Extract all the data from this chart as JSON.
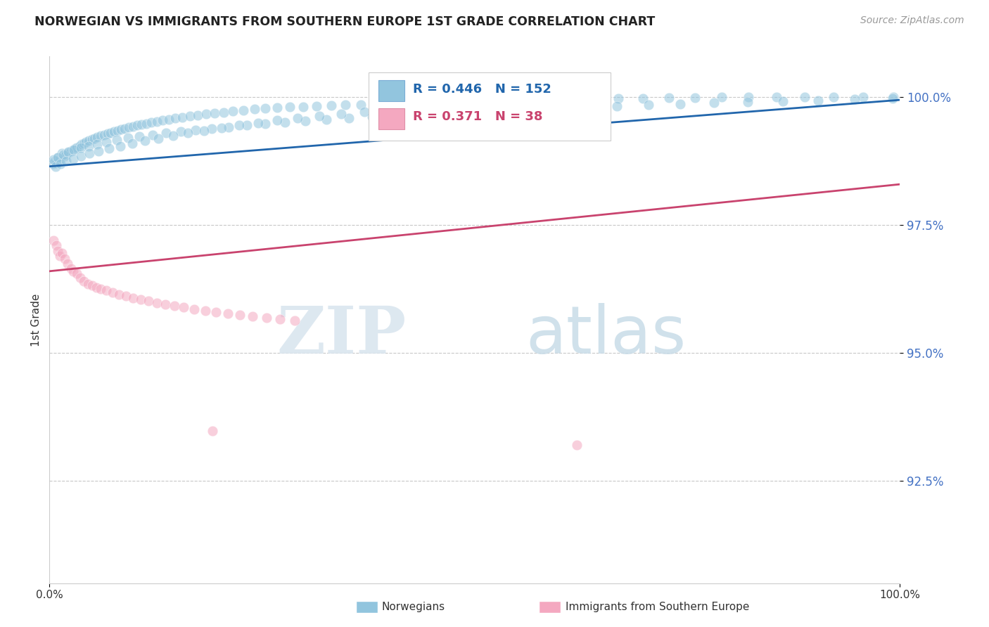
{
  "title": "NORWEGIAN VS IMMIGRANTS FROM SOUTHERN EUROPE 1ST GRADE CORRELATION CHART",
  "source_text": "Source: ZipAtlas.com",
  "ylabel": "1st Grade",
  "xlim": [
    0.0,
    1.0
  ],
  "ylim": [
    0.905,
    1.008
  ],
  "yticks": [
    0.925,
    0.95,
    0.975,
    1.0
  ],
  "ytick_labels": [
    "92.5%",
    "95.0%",
    "97.5%",
    "100.0%"
  ],
  "legend_blue_R": "R = 0.446",
  "legend_blue_N": "N = 152",
  "legend_pink_R": "R = 0.371",
  "legend_pink_N": "N = 38",
  "legend_label_blue": "Norwegians",
  "legend_label_pink": "Immigrants from Southern Europe",
  "blue_color": "#92c5de",
  "pink_color": "#f4a8c0",
  "trendline_blue": "#2166ac",
  "trendline_pink": "#c9436e",
  "watermark_zip": "ZIP",
  "watermark_atlas": "atlas",
  "blue_trend_y_start": 0.9865,
  "blue_trend_y_end": 0.9995,
  "pink_trend_y_start": 0.966,
  "pink_trend_y_end": 0.983,
  "blue_scatter_x": [
    0.004,
    0.006,
    0.008,
    0.01,
    0.012,
    0.015,
    0.018,
    0.02,
    0.022,
    0.025,
    0.028,
    0.03,
    0.032,
    0.035,
    0.038,
    0.04,
    0.043,
    0.046,
    0.05,
    0.053,
    0.056,
    0.06,
    0.064,
    0.068,
    0.072,
    0.076,
    0.08,
    0.084,
    0.088,
    0.093,
    0.098,
    0.103,
    0.108,
    0.114,
    0.12,
    0.126,
    0.133,
    0.14,
    0.148,
    0.156,
    0.165,
    0.174,
    0.184,
    0.194,
    0.205,
    0.216,
    0.228,
    0.241,
    0.254,
    0.268,
    0.283,
    0.298,
    0.314,
    0.331,
    0.348,
    0.366,
    0.385,
    0.404,
    0.424,
    0.445,
    0.467,
    0.489,
    0.512,
    0.536,
    0.561,
    0.587,
    0.614,
    0.641,
    0.669,
    0.698,
    0.728,
    0.759,
    0.79,
    0.822,
    0.855,
    0.888,
    0.922,
    0.957,
    0.992,
    0.005,
    0.01,
    0.016,
    0.022,
    0.029,
    0.037,
    0.046,
    0.056,
    0.067,
    0.079,
    0.092,
    0.106,
    0.121,
    0.137,
    0.154,
    0.172,
    0.191,
    0.211,
    0.232,
    0.254,
    0.277,
    0.301,
    0.326,
    0.352,
    0.379,
    0.407,
    0.436,
    0.466,
    0.497,
    0.529,
    0.562,
    0.596,
    0.631,
    0.667,
    0.704,
    0.742,
    0.781,
    0.821,
    0.862,
    0.904,
    0.947,
    0.991,
    0.007,
    0.013,
    0.02,
    0.028,
    0.037,
    0.047,
    0.058,
    0.07,
    0.083,
    0.097,
    0.112,
    0.128,
    0.145,
    0.163,
    0.182,
    0.202,
    0.223,
    0.245,
    0.268,
    0.292,
    0.317,
    0.343,
    0.37,
    0.398,
    0.427,
    0.457,
    0.488,
    0.52,
    0.553,
    0.587,
    0.622
  ],
  "blue_scatter_y": [
    0.987,
    0.9875,
    0.9872,
    0.9882,
    0.9878,
    0.989,
    0.9885,
    0.9888,
    0.9892,
    0.9895,
    0.9898,
    0.99,
    0.9902,
    0.9905,
    0.9908,
    0.991,
    0.9912,
    0.9915,
    0.9918,
    0.992,
    0.9922,
    0.9925,
    0.9927,
    0.9929,
    0.9931,
    0.9933,
    0.9935,
    0.9937,
    0.9939,
    0.9941,
    0.9943,
    0.9945,
    0.9947,
    0.9949,
    0.9951,
    0.9953,
    0.9955,
    0.9957,
    0.9959,
    0.9961,
    0.9963,
    0.9965,
    0.9967,
    0.9969,
    0.9971,
    0.9973,
    0.9975,
    0.9977,
    0.9978,
    0.998,
    0.9981,
    0.9982,
    0.9983,
    0.9984,
    0.9985,
    0.9986,
    0.9987,
    0.9988,
    0.9989,
    0.999,
    0.9991,
    0.9992,
    0.9993,
    0.9994,
    0.9995,
    0.9996,
    0.9997,
    0.9997,
    0.9998,
    0.9998,
    0.9999,
    0.9999,
    1.0,
    1.0,
    1.0,
    1.0,
    1.0,
    1.0,
    1.0,
    0.9878,
    0.9883,
    0.9888,
    0.9893,
    0.9897,
    0.9901,
    0.9905,
    0.9909,
    0.9913,
    0.9917,
    0.9921,
    0.9924,
    0.9927,
    0.993,
    0.9933,
    0.9936,
    0.9939,
    0.9942,
    0.9945,
    0.9948,
    0.9951,
    0.9954,
    0.9957,
    0.996,
    0.9962,
    0.9965,
    0.9967,
    0.997,
    0.9972,
    0.9975,
    0.9977,
    0.9979,
    0.9981,
    0.9983,
    0.9985,
    0.9987,
    0.9989,
    0.9991,
    0.9993,
    0.9994,
    0.9996,
    0.9998,
    0.9865,
    0.987,
    0.9875,
    0.988,
    0.9885,
    0.989,
    0.9895,
    0.99,
    0.9905,
    0.991,
    0.9915,
    0.992,
    0.9925,
    0.993,
    0.9935,
    0.994,
    0.9945,
    0.995,
    0.9955,
    0.996,
    0.9964,
    0.9968,
    0.9972,
    0.9975,
    0.9978,
    0.9981,
    0.9983,
    0.9986,
    0.9988,
    0.999,
    0.9992
  ],
  "pink_scatter_x": [
    0.005,
    0.008,
    0.01,
    0.012,
    0.015,
    0.018,
    0.021,
    0.025,
    0.028,
    0.032,
    0.036,
    0.04,
    0.045,
    0.05,
    0.055,
    0.06,
    0.067,
    0.074,
    0.082,
    0.09,
    0.098,
    0.107,
    0.116,
    0.126,
    0.136,
    0.147,
    0.158,
    0.17,
    0.183,
    0.196,
    0.21,
    0.224,
    0.239,
    0.255,
    0.271,
    0.288,
    0.192,
    0.62
  ],
  "pink_scatter_y": [
    0.972,
    0.971,
    0.97,
    0.969,
    0.9695,
    0.9685,
    0.9675,
    0.9665,
    0.966,
    0.9655,
    0.9648,
    0.964,
    0.9635,
    0.9632,
    0.9628,
    0.9625,
    0.9622,
    0.9618,
    0.9615,
    0.9612,
    0.9608,
    0.9605,
    0.9602,
    0.9598,
    0.9595,
    0.9592,
    0.9589,
    0.9586,
    0.9583,
    0.958,
    0.9577,
    0.9574,
    0.9572,
    0.9569,
    0.9566,
    0.9563,
    0.9348,
    0.932
  ]
}
